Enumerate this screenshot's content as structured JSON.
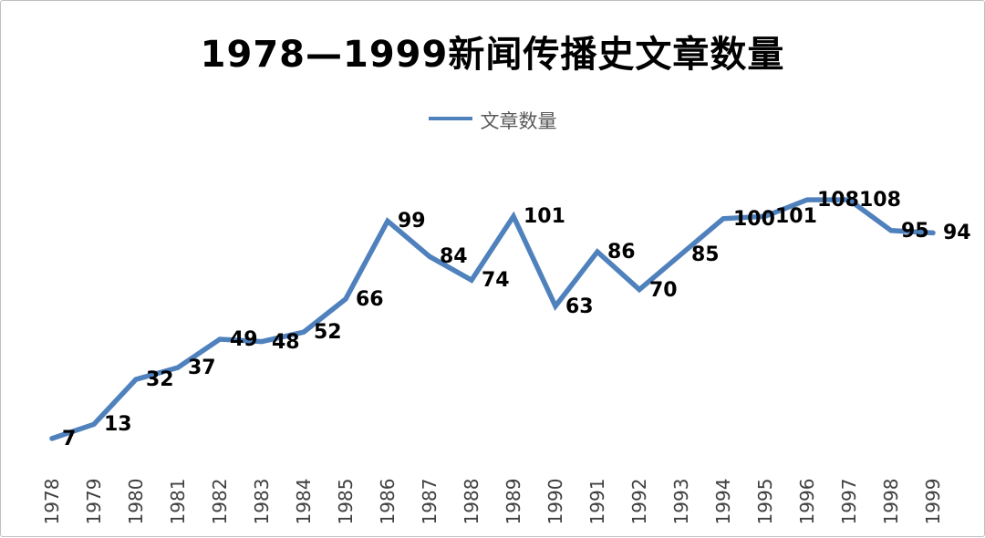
{
  "title": "1978—1999新闻传播史文章数量",
  "legend": {
    "label": "文章数量"
  },
  "chart_data": {
    "type": "line",
    "title": "1978—1999新闻传播史文章数量",
    "categories": [
      "1978",
      "1979",
      "1980",
      "1981",
      "1982",
      "1983",
      "1984",
      "1985",
      "1986",
      "1987",
      "1988",
      "1989",
      "1990",
      "1991",
      "1992",
      "1993",
      "1994",
      "1995",
      "1996",
      "1997",
      "1998",
      "1999"
    ],
    "values": [
      7,
      13,
      32,
      37,
      49,
      48,
      52,
      66,
      99,
      84,
      74,
      101,
      63,
      86,
      70,
      85,
      100,
      101,
      108,
      108,
      95,
      94
    ],
    "series": [
      {
        "name": "文章数量",
        "values": [
          7,
          13,
          32,
          37,
          49,
          48,
          52,
          66,
          99,
          84,
          74,
          101,
          63,
          86,
          70,
          85,
          100,
          101,
          108,
          108,
          95,
          94
        ]
      }
    ],
    "xlabel": "",
    "ylabel": "",
    "ylim": [
      0,
      120
    ],
    "grid": false,
    "legend_position": "top",
    "data_labels": true,
    "line_color": "#4F81BD"
  }
}
